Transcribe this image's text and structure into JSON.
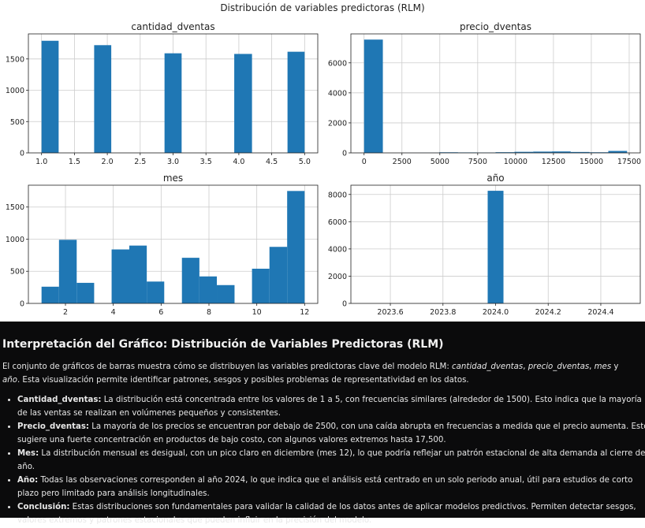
{
  "figure_title": "Distribución de variables predictoras (RLM)",
  "chart_data": [
    {
      "type": "bar",
      "title": "cantidad_dventas",
      "bins": [
        {
          "x0": 1.0,
          "x1": 1.26,
          "count": 1790
        },
        {
          "x0": 1.8,
          "x1": 2.06,
          "count": 1720
        },
        {
          "x0": 2.87,
          "x1": 3.13,
          "count": 1590
        },
        {
          "x0": 3.93,
          "x1": 4.2,
          "count": 1580
        },
        {
          "x0": 4.74,
          "x1": 5.0,
          "count": 1615
        }
      ],
      "xlim": [
        0.8,
        5.2
      ],
      "ylim": [
        0,
        1900
      ],
      "xticks": [
        1.0,
        1.5,
        2.0,
        2.5,
        3.0,
        3.5,
        4.0,
        4.5,
        5.0
      ],
      "xtick_labels": [
        "1.0",
        "1.5",
        "2.0",
        "2.5",
        "3.0",
        "3.5",
        "4.0",
        "4.5",
        "5.0"
      ],
      "yticks": [
        0,
        500,
        1000,
        1500
      ],
      "ytick_labels": [
        "0",
        "500",
        "1000",
        "1500"
      ],
      "grid": true
    },
    {
      "type": "bar",
      "title": "precio_dventas",
      "bins": [
        {
          "x0": 0,
          "x1": 1240,
          "count": 7550
        },
        {
          "x0": 1240,
          "x1": 2480,
          "count": 0
        },
        {
          "x0": 2480,
          "x1": 3720,
          "count": 5
        },
        {
          "x0": 3720,
          "x1": 4960,
          "count": 10
        },
        {
          "x0": 4960,
          "x1": 6200,
          "count": 40
        },
        {
          "x0": 6200,
          "x1": 7440,
          "count": 30
        },
        {
          "x0": 7440,
          "x1": 8680,
          "count": 25
        },
        {
          "x0": 8680,
          "x1": 9920,
          "count": 45
        },
        {
          "x0": 9920,
          "x1": 11160,
          "count": 70
        },
        {
          "x0": 11160,
          "x1": 12400,
          "count": 85
        },
        {
          "x0": 12400,
          "x1": 13640,
          "count": 95
        },
        {
          "x0": 13640,
          "x1": 14880,
          "count": 60
        },
        {
          "x0": 14880,
          "x1": 16120,
          "count": 40
        },
        {
          "x0": 16120,
          "x1": 17360,
          "count": 130
        }
      ],
      "xlim": [
        -870,
        18230
      ],
      "ylim": [
        0,
        7930
      ],
      "xticks": [
        0,
        2500,
        5000,
        7500,
        10000,
        12500,
        15000,
        17500
      ],
      "xtick_labels": [
        "0",
        "2500",
        "5000",
        "7500",
        "10000",
        "12500",
        "15000",
        "17500"
      ],
      "yticks": [
        0,
        2000,
        4000,
        6000
      ],
      "ytick_labels": [
        "0",
        "2000",
        "4000",
        "6000"
      ],
      "grid": true
    },
    {
      "type": "bar",
      "title": "mes",
      "bins": [
        {
          "x0": 1.0,
          "x1": 1.73,
          "count": 260
        },
        {
          "x0": 1.73,
          "x1": 2.47,
          "count": 990
        },
        {
          "x0": 2.47,
          "x1": 3.2,
          "count": 320
        },
        {
          "x0": 3.2,
          "x1": 3.93,
          "count": 0
        },
        {
          "x0": 3.93,
          "x1": 4.67,
          "count": 840
        },
        {
          "x0": 4.67,
          "x1": 5.4,
          "count": 900
        },
        {
          "x0": 5.4,
          "x1": 6.13,
          "count": 340
        },
        {
          "x0": 6.13,
          "x1": 6.87,
          "count": 0
        },
        {
          "x0": 6.87,
          "x1": 7.6,
          "count": 710
        },
        {
          "x0": 7.6,
          "x1": 8.33,
          "count": 420
        },
        {
          "x0": 8.33,
          "x1": 9.07,
          "count": 285
        },
        {
          "x0": 9.07,
          "x1": 9.8,
          "count": 0
        },
        {
          "x0": 9.8,
          "x1": 10.53,
          "count": 540
        },
        {
          "x0": 10.53,
          "x1": 11.27,
          "count": 880
        },
        {
          "x0": 11.27,
          "x1": 12.0,
          "count": 1750
        }
      ],
      "xlim": [
        0.45,
        12.55
      ],
      "ylim": [
        0,
        1840
      ],
      "xticks": [
        2,
        4,
        6,
        8,
        10,
        12
      ],
      "xtick_labels": [
        "2",
        "4",
        "6",
        "8",
        "10",
        "12"
      ],
      "yticks": [
        0,
        500,
        1000,
        1500
      ],
      "ytick_labels": [
        "0",
        "500",
        "1000",
        "1500"
      ],
      "grid": true
    },
    {
      "type": "bar",
      "title": "año",
      "bins": [
        {
          "x0": 23.97,
          "x1": 24.03,
          "count": 8270
        }
      ],
      "xlim": [
        23.45,
        24.55
      ],
      "ylim": [
        0,
        8680
      ],
      "xticks": [
        23.6,
        23.8,
        24.0,
        24.2,
        24.4
      ],
      "xtick_labels": [
        "2023.6",
        "2023.8",
        "2024.0",
        "2024.2",
        "2024.4"
      ],
      "yticks": [
        0,
        2000,
        4000,
        6000,
        8000
      ],
      "ytick_labels": [
        "0",
        "2000",
        "4000",
        "6000",
        "8000"
      ],
      "grid": true
    }
  ],
  "colors": {
    "bar": "#1f77b4",
    "grid": "#cccccc",
    "panel_bg": "#0b0b0c"
  },
  "panel": {
    "heading": "Interpretación del Gráfico: Distribución de Variables Predictoras (RLM)",
    "intro_start": "El conjunto de gráficos de barras muestra cómo se distribuyen las variables predictoras clave del modelo RLM: ",
    "intro_var1": "cantidad_dventas",
    "intro_sep1": ", ",
    "intro_var2": "precio_dventas",
    "intro_sep2": ", ",
    "intro_var3": "mes",
    "intro_sep3": " y ",
    "intro_var4": "año",
    "intro_end": ". Esta visualización permite identificar patrones, sesgos y posibles problemas de representatividad en los datos.",
    "bullets": [
      {
        "label": "Cantidad_dventas:",
        "text": " La distribución está concentrada entre los valores de 1 a 5, con frecuencias similares (alrededor de 1500). Esto indica que la mayoría de las ventas se realizan en volúmenes pequeños y consistentes."
      },
      {
        "label": "Precio_dventas:",
        "text": " La mayoría de los precios se encuentran por debajo de 2500, con una caída abrupta en frecuencias a medida que el precio aumenta. Esto sugiere una fuerte concentración en productos de bajo costo, con algunos valores extremos hasta 17,500."
      },
      {
        "label": "Mes:",
        "text": " La distribución mensual es desigual, con un pico claro en diciembre (mes 12), lo que podría reflejar un patrón estacional de alta demanda al cierre del año."
      },
      {
        "label": "Año:",
        "text": " Todas las observaciones corresponden al año 2024, lo que indica que el análisis está centrado en un solo periodo anual, útil para estudios de corto plazo pero limitado para análisis longitudinales."
      },
      {
        "label": "Conclusión:",
        "text": " Estas distribuciones son fundamentales para validar la calidad de los datos antes de aplicar modelos predictivos. Permiten detectar sesgos, valores extremos y patrones estacionales que pueden influir en la precisión del modelo."
      }
    ]
  }
}
